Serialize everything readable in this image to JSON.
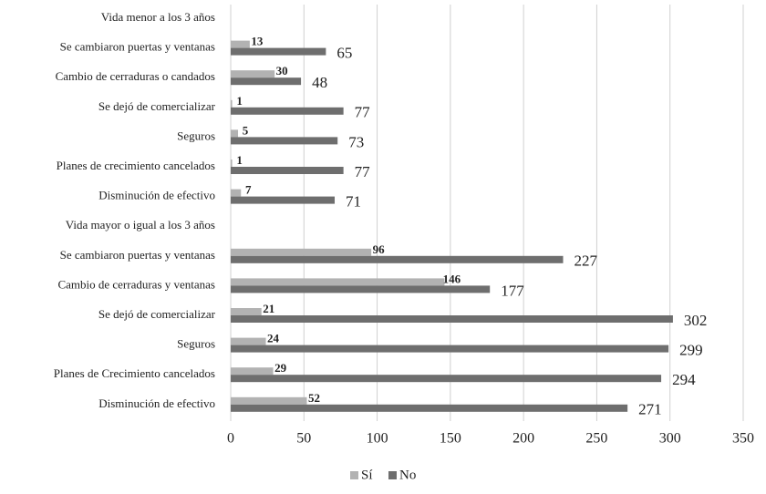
{
  "chart_data": {
    "type": "hbar",
    "categories": [
      "Vida menor a los 3 años",
      "Se cambiaron puertas y ventanas",
      "Cambio de cerraduras o candados",
      "Se dejó de comercializar",
      "Seguros",
      "Planes de crecimiento cancelados",
      "Disminución de efectivo",
      "Vida mayor o igual a los 3 años",
      "Se cambiaron puertas y ventanas",
      "Cambio de cerraduras y ventanas",
      "Se dejó de comercializar",
      "Seguros",
      "Planes de Crecimiento cancelados",
      "Disminución de efectivo"
    ],
    "series": [
      {
        "name": "Sí",
        "color": "#b2b2b2",
        "values": [
          null,
          13,
          30,
          1,
          5,
          1,
          7,
          null,
          96,
          146,
          21,
          24,
          29,
          52
        ]
      },
      {
        "name": "No",
        "color": "#6e6e6e",
        "values": [
          null,
          65,
          48,
          77,
          73,
          77,
          71,
          null,
          227,
          177,
          302,
          299,
          294,
          271
        ]
      }
    ],
    "xlim": [
      0,
      350
    ],
    "xticks": [
      0,
      50,
      100,
      150,
      200,
      250,
      300,
      350
    ],
    "grid": true,
    "legend": "bottom"
  }
}
